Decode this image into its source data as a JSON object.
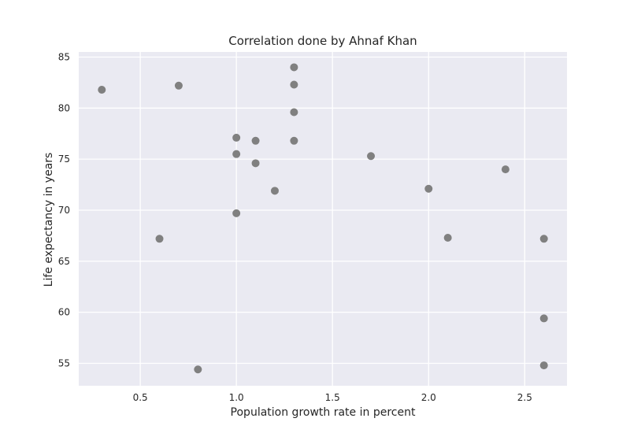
{
  "chart_data": {
    "type": "scatter",
    "title": "Correlation done by Ahnaf Khan",
    "xlabel": "Population growth rate in percent",
    "ylabel": "Life expectancy in years",
    "xlim": [
      0.18,
      2.72
    ],
    "ylim": [
      52.8,
      85.5
    ],
    "xticks": [
      0.5,
      1.0,
      1.5,
      2.0,
      2.5
    ],
    "xtick_labels": [
      "0.5",
      "1.0",
      "1.5",
      "2.0",
      "2.5"
    ],
    "yticks": [
      55,
      60,
      65,
      70,
      75,
      80,
      85
    ],
    "ytick_labels": [
      "55",
      "60",
      "65",
      "70",
      "75",
      "80",
      "85"
    ],
    "grid": true,
    "colors": {
      "background": "#eaeaf2",
      "grid": "#ffffff",
      "points": "#808080"
    },
    "points": [
      {
        "x": 0.3,
        "y": 81.8
      },
      {
        "x": 0.6,
        "y": 67.2
      },
      {
        "x": 0.7,
        "y": 82.2
      },
      {
        "x": 0.8,
        "y": 54.4
      },
      {
        "x": 1.0,
        "y": 77.1
      },
      {
        "x": 1.0,
        "y": 75.5
      },
      {
        "x": 1.0,
        "y": 69.7
      },
      {
        "x": 1.1,
        "y": 76.8
      },
      {
        "x": 1.1,
        "y": 74.6
      },
      {
        "x": 1.2,
        "y": 71.9
      },
      {
        "x": 1.3,
        "y": 84.0
      },
      {
        "x": 1.3,
        "y": 82.3
      },
      {
        "x": 1.3,
        "y": 79.6
      },
      {
        "x": 1.3,
        "y": 76.8
      },
      {
        "x": 1.7,
        "y": 75.3
      },
      {
        "x": 2.0,
        "y": 72.1
      },
      {
        "x": 2.1,
        "y": 67.3
      },
      {
        "x": 2.4,
        "y": 74.0
      },
      {
        "x": 2.6,
        "y": 67.2
      },
      {
        "x": 2.6,
        "y": 59.4
      },
      {
        "x": 2.6,
        "y": 54.8
      }
    ]
  }
}
